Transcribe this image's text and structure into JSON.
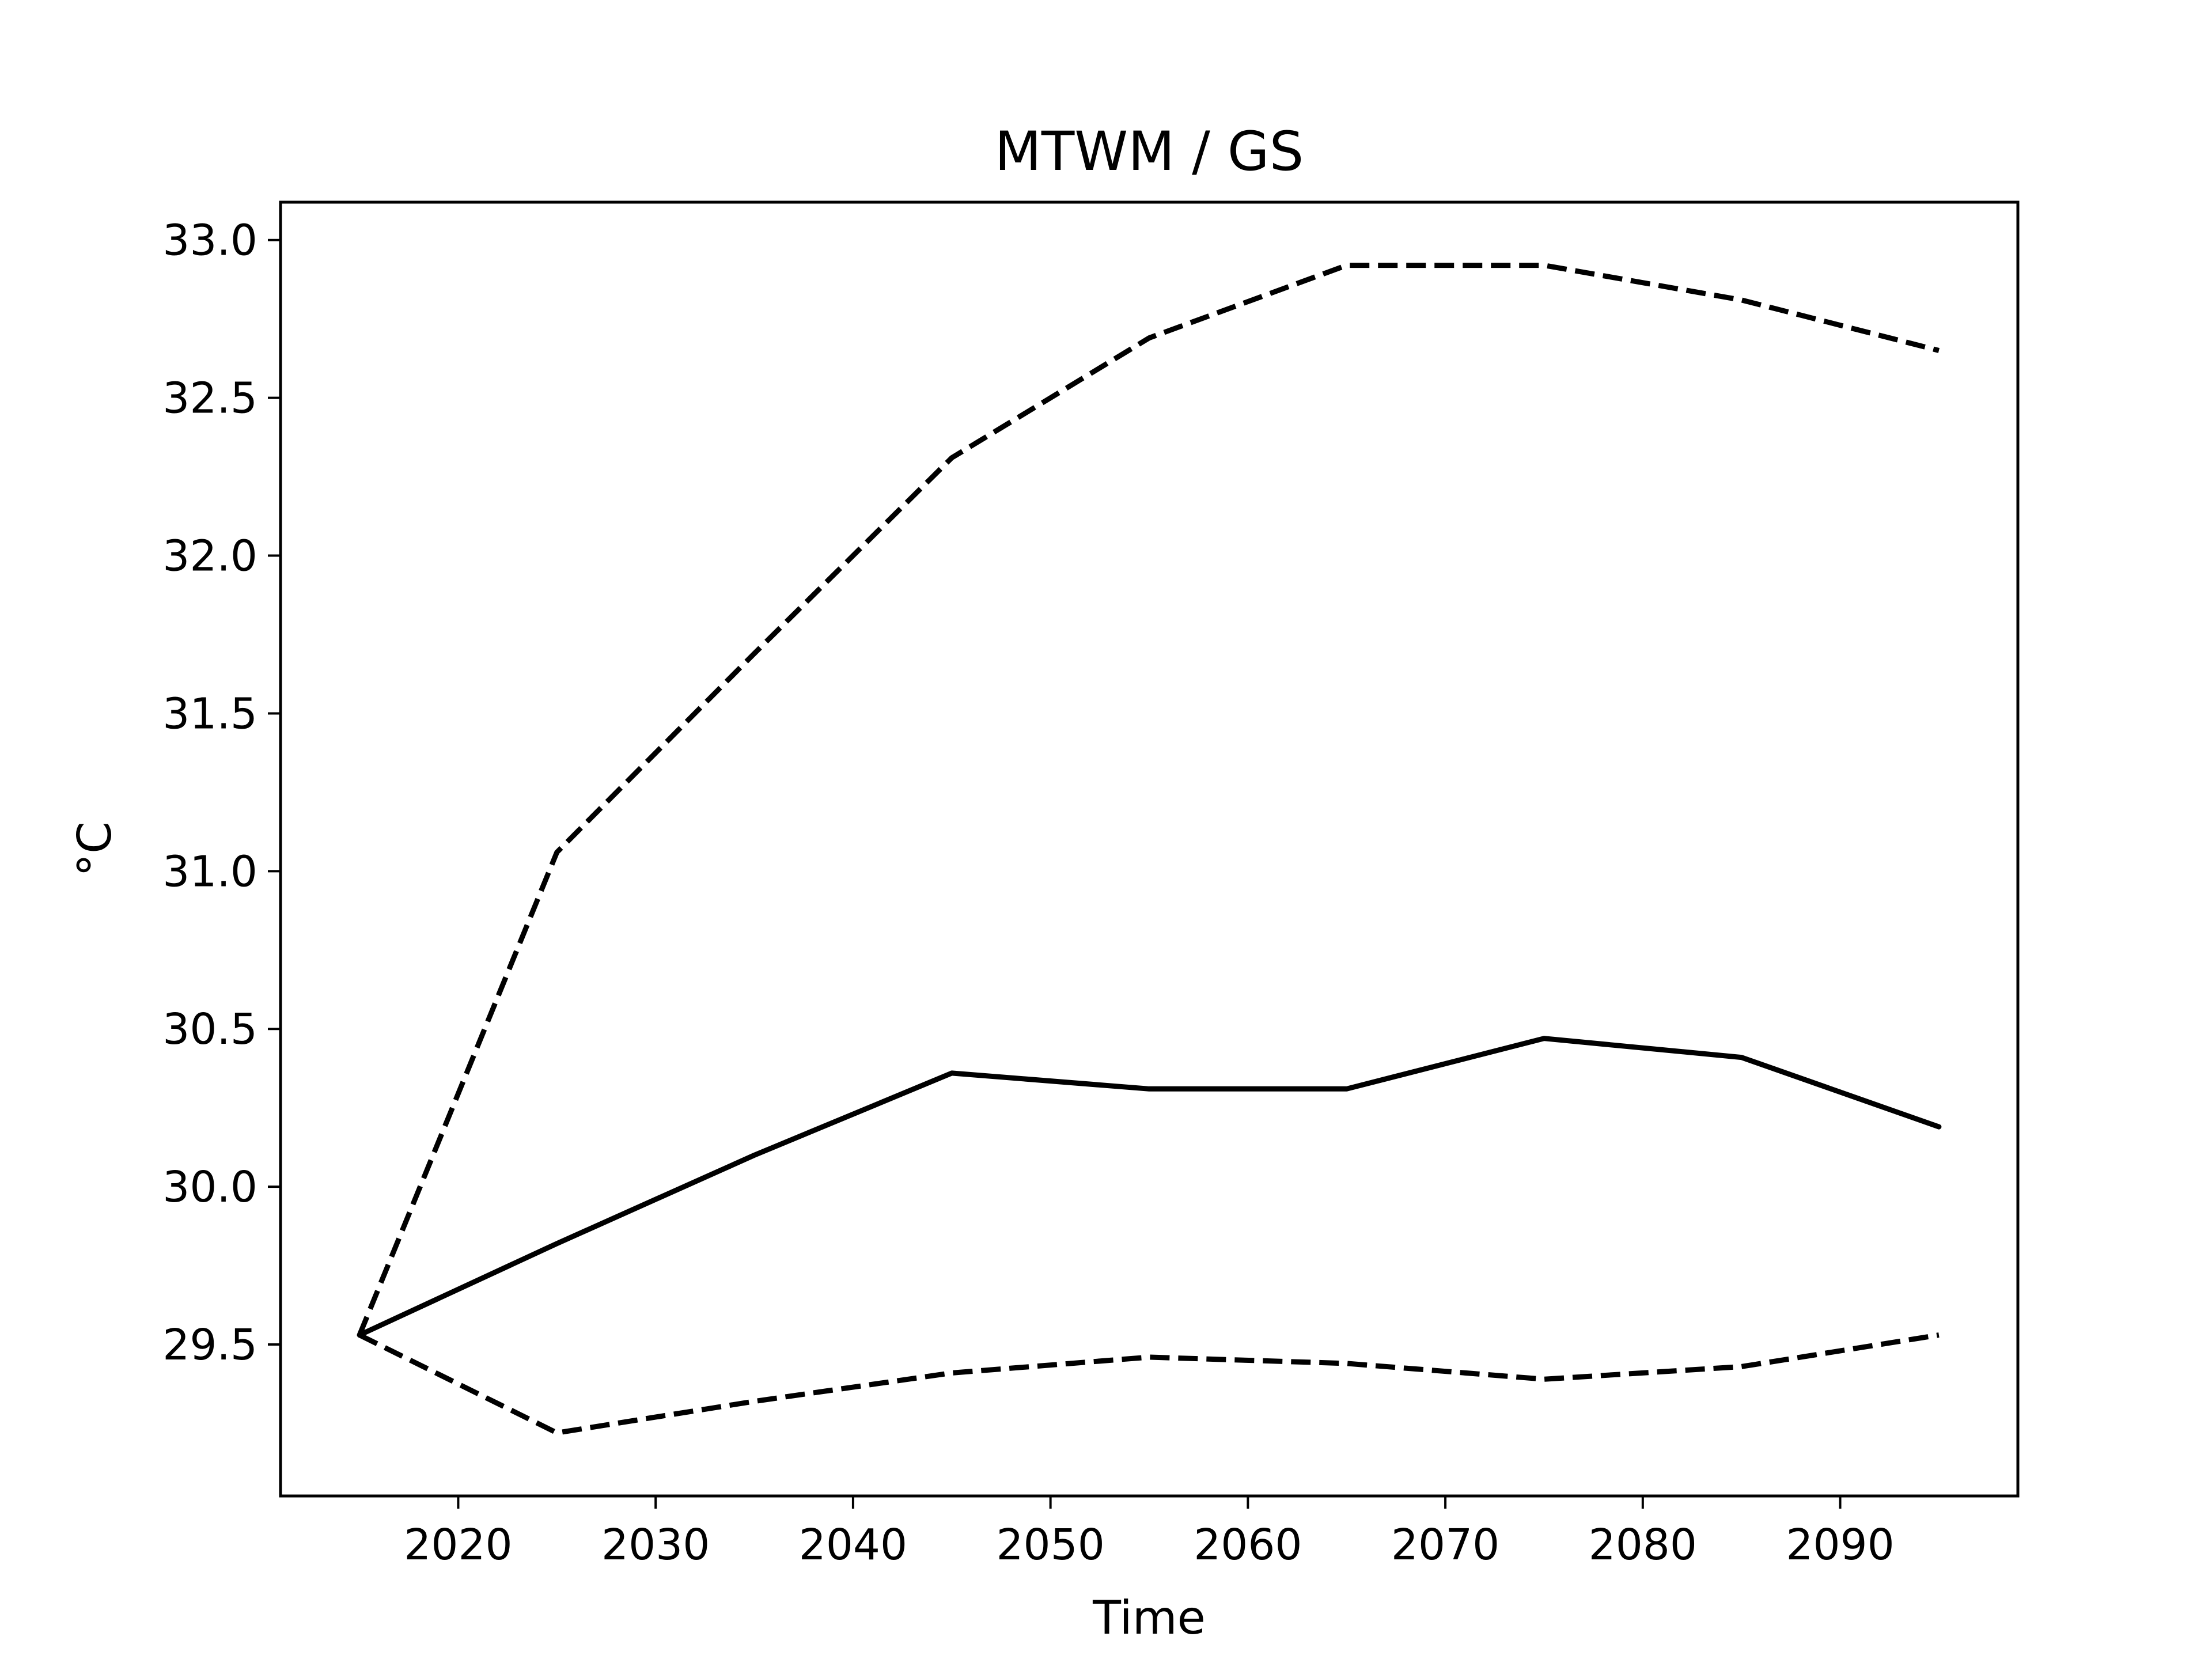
{
  "chart_data": {
    "type": "line",
    "title": "MTWM / GS",
    "xlabel": "Time",
    "ylabel": "°C",
    "xlim": [
      2011,
      2099
    ],
    "ylim": [
      29.02,
      33.12
    ],
    "x_ticks": [
      2020,
      2030,
      2040,
      2050,
      2060,
      2070,
      2080,
      2090
    ],
    "y_ticks": [
      29.5,
      30.0,
      30.5,
      31.0,
      31.5,
      32.0,
      32.5,
      33.0
    ],
    "grid": false,
    "legend": "none",
    "x": [
      2015,
      2025,
      2035,
      2045,
      2055,
      2065,
      2075,
      2085,
      2095
    ],
    "series": [
      {
        "style": "dashed",
        "color": "#000000",
        "values": [
          29.53,
          31.06,
          31.69,
          32.31,
          32.69,
          32.92,
          32.92,
          32.81,
          32.65
        ]
      },
      {
        "style": "solid",
        "color": "#000000",
        "values": [
          29.53,
          29.82,
          30.1,
          30.36,
          30.31,
          30.31,
          30.47,
          30.41,
          30.19
        ]
      },
      {
        "style": "dashed",
        "color": "#000000",
        "values": [
          29.53,
          29.22,
          29.32,
          29.41,
          29.46,
          29.44,
          29.39,
          29.43,
          29.53
        ]
      }
    ]
  }
}
